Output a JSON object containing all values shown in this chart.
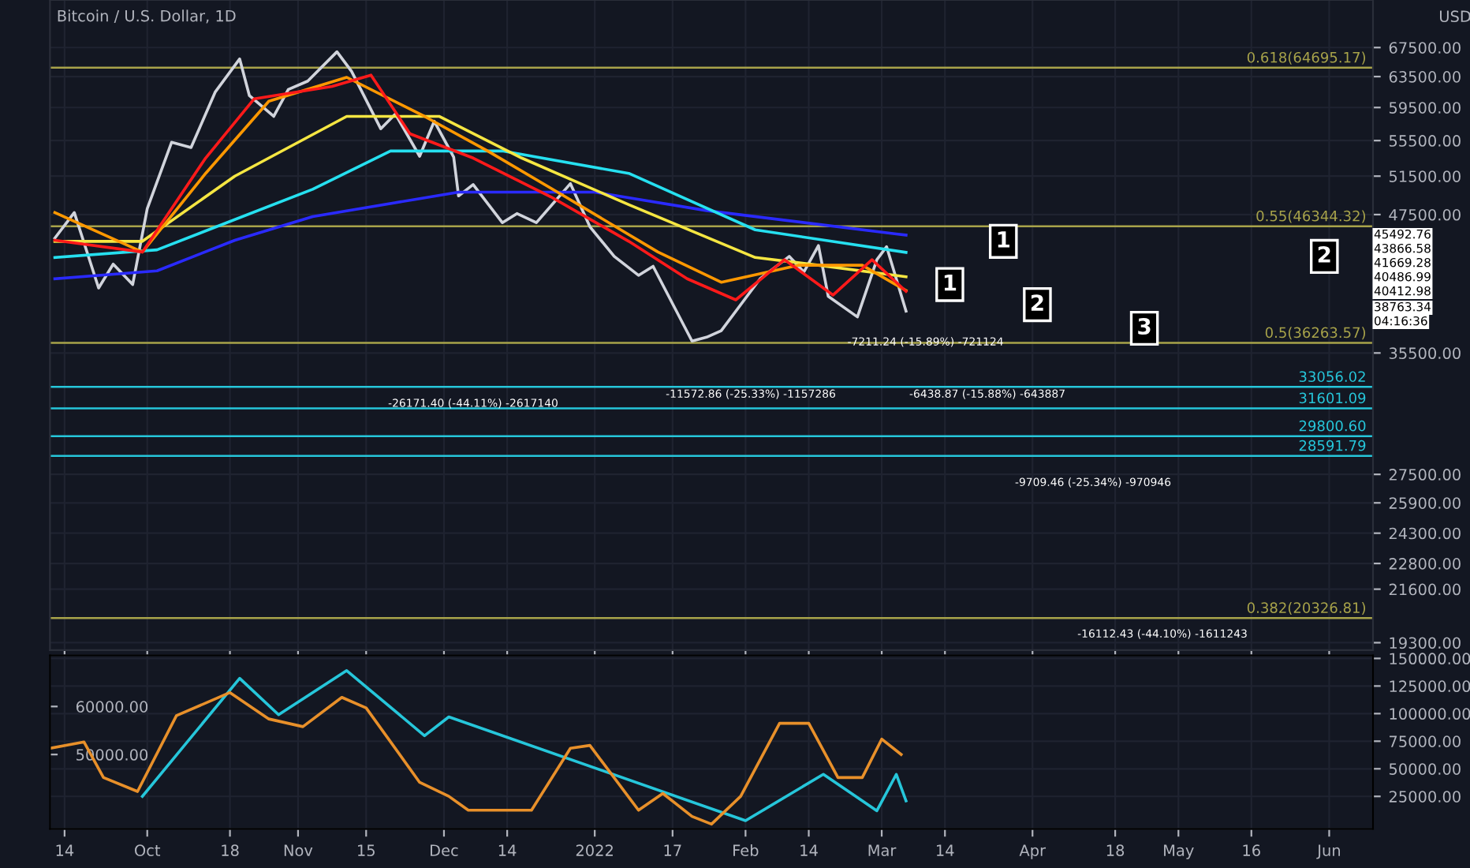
{
  "chart_data": [
    {
      "type": "line",
      "title": "Bitcoin / U.S. Dollar, 1D",
      "ylabel": "USD",
      "log": "y",
      "grid": true,
      "tick_labels": "y",
      "xlim": [
        "2021-09-11",
        "2022-06-10"
      ],
      "ylim": [
        19000,
        74600
      ],
      "yticks": [
        {
          "value": 19300,
          "label": "19300.00"
        },
        {
          "value": 21600,
          "label": "21600.00"
        },
        {
          "value": 22800,
          "label": "22800.00"
        },
        {
          "value": 24300,
          "label": "24300.00"
        },
        {
          "value": 25900,
          "label": "25900.00"
        },
        {
          "value": 27500,
          "label": "27500.00"
        },
        {
          "value": 35500,
          "label": "35500.00"
        },
        {
          "value": 47500,
          "label": "47500.00"
        },
        {
          "value": 51500,
          "label": "51500.00"
        },
        {
          "value": 55500,
          "label": "55500.00"
        },
        {
          "value": 59500,
          "label": "59500.00"
        },
        {
          "value": 63500,
          "label": "63500.00"
        },
        {
          "value": 67500,
          "label": "67500.00"
        }
      ],
      "series": [
        {
          "color": "#d1d4dc",
          "x": [
            "2021-09-12",
            "2021-09-16",
            "2021-09-21",
            "2021-09-24",
            "2021-09-28",
            "2021-10-01",
            "2021-10-06",
            "2021-10-10",
            "2021-10-15",
            "2021-10-20",
            "2021-10-22",
            "2021-10-27",
            "2021-10-30",
            "2021-11-03",
            "2021-11-09",
            "2021-11-12",
            "2021-11-18",
            "2021-11-21",
            "2021-11-26",
            "2021-11-29",
            "2021-12-03",
            "2021-12-04",
            "2021-12-07",
            "2021-12-13",
            "2021-12-16",
            "2021-12-20",
            "2021-12-27",
            "2021-12-31",
            "2022-01-05",
            "2022-01-10",
            "2022-01-13",
            "2022-01-21",
            "2022-01-24",
            "2022-01-27",
            "2022-02-04",
            "2022-02-10",
            "2022-02-13",
            "2022-02-16",
            "2022-02-18",
            "2022-02-24",
            "2022-02-28",
            "2022-03-02",
            "2022-03-06"
          ],
          "values": [
            45200,
            47700,
            40700,
            42800,
            41000,
            48100,
            55300,
            54700,
            61500,
            65900,
            61000,
            58400,
            61800,
            62900,
            66900,
            64200,
            56900,
            58700,
            53700,
            57800,
            53600,
            49400,
            50600,
            46700,
            47600,
            46700,
            50700,
            46300,
            43500,
            41800,
            42600,
            36400,
            36700,
            37200,
            41500,
            43500,
            42100,
            44500,
            40000,
            38300,
            43200,
            44400,
            38763.34
          ]
        },
        {
          "color": "#2a2aff",
          "x": [
            "2021-09-12",
            "2021-10-03",
            "2021-10-19",
            "2021-11-04",
            "2021-12-04",
            "2022-01-01",
            "2022-01-24",
            "2022-03-04",
            "2022-03-06"
          ],
          "values": [
            41500,
            42200,
            45000,
            47300,
            49800,
            49800,
            47900,
            45600,
            45492.76
          ]
        },
        {
          "color": "#26e0f0",
          "x": [
            "2021-09-12",
            "2021-10-03",
            "2021-11-04",
            "2021-11-20",
            "2021-12-13",
            "2022-01-08",
            "2022-02-03",
            "2022-03-06"
          ],
          "values": [
            43400,
            44100,
            50100,
            54300,
            54300,
            51800,
            46000,
            43866.58
          ]
        },
        {
          "color": "#f5e642",
          "x": [
            "2021-09-12",
            "2021-09-30",
            "2021-10-19",
            "2021-11-11",
            "2021-11-30",
            "2021-12-17",
            "2022-01-08",
            "2022-02-03",
            "2022-02-16",
            "2022-03-06"
          ],
          "values": [
            44900,
            44900,
            51500,
            58400,
            58400,
            53500,
            48500,
            43400,
            42700,
            41669.28
          ]
        },
        {
          "color": "#ff9800",
          "x": [
            "2021-09-12",
            "2021-09-30",
            "2021-10-13",
            "2021-10-26",
            "2021-11-11",
            "2021-11-27",
            "2021-12-10",
            "2021-12-26",
            "2022-01-14",
            "2022-01-27",
            "2022-02-12",
            "2022-02-25",
            "2022-03-06"
          ],
          "values": [
            47700,
            43900,
            51800,
            60300,
            63400,
            58400,
            54300,
            49300,
            43900,
            41200,
            42700,
            42700,
            40486.99
          ]
        },
        {
          "color": "#ff1a1a",
          "x": [
            "2021-09-12",
            "2021-09-30",
            "2021-10-13",
            "2021-10-23",
            "2021-11-08",
            "2021-11-16",
            "2021-11-24",
            "2021-12-07",
            "2021-12-23",
            "2022-01-08",
            "2022-01-20",
            "2022-01-30",
            "2022-02-09",
            "2022-02-19",
            "2022-02-27",
            "2022-03-06"
          ],
          "values": [
            45000,
            43900,
            53500,
            60600,
            62200,
            63700,
            56300,
            53500,
            49300,
            44900,
            41500,
            39700,
            43200,
            40100,
            43200,
            40412.98
          ]
        }
      ],
      "ref_lines": [
        {
          "axis": "y",
          "value": 64695.17,
          "label": "0.618(64695.17)",
          "color": "#a8a34a"
        },
        {
          "axis": "y",
          "value": 46344.32,
          "label": "0.55(46344.32)",
          "color": "#a8a34a"
        },
        {
          "axis": "y",
          "value": 36263.57,
          "label": "0.5(36263.57)",
          "color": "#a8a34a"
        },
        {
          "axis": "y",
          "value": 20326.81,
          "label": "0.382(20326.81)",
          "color": "#a8a34a"
        },
        {
          "axis": "y",
          "value": 33056.02,
          "label": "33056.02",
          "color": "#26c6da"
        },
        {
          "axis": "y",
          "value": 31601.09,
          "label": "31601.09",
          "color": "#26c6da"
        },
        {
          "axis": "y",
          "value": 29800.6,
          "label": "29800.60",
          "color": "#26c6da"
        },
        {
          "axis": "y",
          "value": 28591.79,
          "label": "28591.79",
          "color": "#26c6da"
        }
      ],
      "annotations": [
        {
          "text": "-26171.40 (-44.11%) -2617140",
          "x": "2021-12-07",
          "y": 31900
        },
        "-11572.86 (-25.33%) -1157286",
        {
          "text": "-7211.24 (-15.89%) -721124",
          "x": "2022-03-10",
          "y": 36300
        },
        "-6438.87 (-15.88%) -643887",
        "-9709.46 (-25.34%) -970946",
        "-16112.43 (-44.10%) -1611243",
        {
          "text": "1",
          "x": "2022-03-26",
          "y": 44900
        },
        {
          "text": "1",
          "x": "2022-03-15",
          "y": 41000
        },
        {
          "text": "2",
          "x": "2022-04-02",
          "y": 39300
        },
        {
          "text": "3",
          "x": "2022-04-24",
          "y": 37400
        },
        {
          "text": "2",
          "x": "2022-05-31",
          "y": 43500
        },
        "45492.76",
        "43866.58",
        "41669.28",
        "40486.99",
        "40412.98",
        "38763.34",
        "04:16:36"
      ]
    },
    {
      "type": "line",
      "grid": true,
      "xlim": [
        "2021-09-11",
        "2022-06-10"
      ],
      "xticks": [
        {
          "value": "2021-09-14",
          "label": "14"
        },
        {
          "value": "2021-10-01",
          "label": "Oct"
        },
        {
          "value": "2021-10-18",
          "label": "18"
        },
        {
          "value": "2021-11-01",
          "label": "Nov"
        },
        {
          "value": "2021-11-15",
          "label": "15"
        },
        {
          "value": "2021-12-01",
          "label": "Dec"
        },
        {
          "value": "2021-12-14",
          "label": "14"
        },
        {
          "value": "2022-01-01",
          "label": "2022"
        },
        {
          "value": "2022-01-17",
          "label": "17"
        },
        {
          "value": "2022-02-01",
          "label": "Feb"
        },
        {
          "value": "2022-02-14",
          "label": "14"
        },
        {
          "value": "2022-03-01",
          "label": "Mar"
        },
        {
          "value": "2022-03-14",
          "label": "14"
        },
        {
          "value": "2022-04-01",
          "label": "Apr"
        },
        {
          "value": "2022-04-18",
          "label": "18"
        },
        {
          "value": "2022-05-01",
          "label": "May"
        },
        {
          "value": "2022-05-16",
          "label": "16"
        },
        {
          "value": "2022-06-01",
          "label": "Jun"
        }
      ],
      "ylim": [
        -4500,
        152800
      ],
      "yticks": [
        {
          "value": 25000,
          "label": "25000.00"
        },
        {
          "value": 50000,
          "label": "50000.00"
        },
        {
          "value": 75000,
          "label": "75000.00"
        },
        {
          "value": 100000,
          "label": "100000.00"
        },
        {
          "value": 125000,
          "label": "125000.00"
        },
        {
          "value": 150000,
          "label": "150000.00"
        }
      ],
      "y2lim": [
        34500,
        70650
      ],
      "y2ticks": [
        {
          "value": 50000,
          "label": "50000.00"
        },
        {
          "value": 60000,
          "label": "60000.00"
        }
      ],
      "series": [
        {
          "color": "#26c6da",
          "x": [
            "2021-09-30",
            "2021-10-20",
            "2021-10-28",
            "2021-11-11",
            "2021-11-27",
            "2021-12-02",
            "2022-02-01",
            "2022-02-17",
            "2022-02-28",
            "2022-03-04",
            "2022-03-06"
          ],
          "values": [
            25000,
            132000,
            99000,
            139000,
            80000,
            97000,
            3000,
            45000,
            12000,
            45000,
            21000
          ]
        },
        {
          "color": "#e8902a",
          "axis": "y2",
          "x": [
            "2021-09-11",
            "2021-09-18",
            "2021-09-22",
            "2021-09-29",
            "2021-10-07",
            "2021-10-18",
            "2021-10-26",
            "2021-11-02",
            "2021-11-10",
            "2021-11-15",
            "2021-11-26",
            "2021-12-02",
            "2021-12-06",
            "2021-12-19",
            "2021-12-27",
            "2021-12-31",
            "2022-01-10",
            "2022-01-15",
            "2022-01-21",
            "2022-01-25",
            "2022-01-31",
            "2022-02-08",
            "2022-02-14",
            "2022-02-20",
            "2022-02-25",
            "2022-03-01",
            "2022-03-05"
          ],
          "values": [
            51300,
            52600,
            45200,
            42300,
            58100,
            62900,
            57400,
            55800,
            61900,
            59700,
            44200,
            41300,
            38400,
            38400,
            51300,
            51900,
            38400,
            41900,
            37100,
            35500,
            41300,
            56500,
            56500,
            45200,
            45200,
            53200,
            50000
          ]
        }
      ]
    }
  ]
}
